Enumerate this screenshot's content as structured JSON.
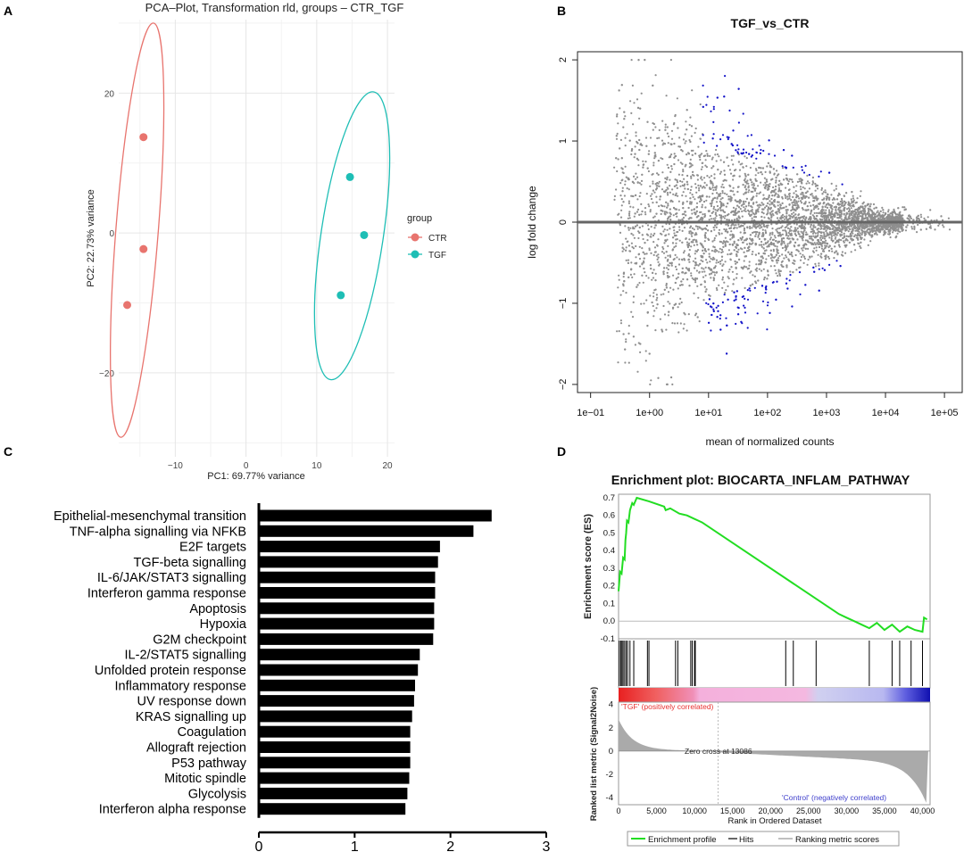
{
  "panels": {
    "a": {
      "label": "A"
    },
    "b": {
      "label": "B"
    },
    "c": {
      "label": "C"
    },
    "d": {
      "label": "D"
    }
  },
  "chart_data": [
    {
      "id": "A",
      "type": "scatter",
      "title": "PCA–Plot, Transformation rld, groups – CTR_TGF",
      "xlabel": "PC1: 69.77% variance",
      "ylabel": "PC2: 22.73% variance",
      "xlim": [
        -18,
        21
      ],
      "ylim": [
        -32,
        30.5
      ],
      "xticks": [
        -10,
        0,
        10,
        20
      ],
      "yticks": [
        -20,
        0,
        20
      ],
      "xtick_labels": [
        "−10",
        "0",
        "10",
        "20"
      ],
      "ytick_labels": [
        "−20",
        "0",
        "20"
      ],
      "grid": true,
      "legend": {
        "title": "group",
        "placement": "right"
      },
      "series": [
        {
          "name": "CTR",
          "color": "#e8746e",
          "points": [
            [
              -14.5,
              13.7
            ],
            [
              -14.5,
              -2.3
            ],
            [
              -16.8,
              -10.3
            ]
          ],
          "ellipse": {
            "cx": -15.4,
            "cy": 0.4,
            "rx": 3.0,
            "ry": 29.7,
            "angle_deg": 4.5
          }
        },
        {
          "name": "TGF",
          "color": "#1ebeb5",
          "points": [
            [
              14.7,
              8.0
            ],
            [
              16.7,
              -0.3
            ],
            [
              13.4,
              -8.9
            ]
          ],
          "ellipse": {
            "cx": 15.0,
            "cy": -0.4,
            "rx": 4.4,
            "ry": 20.8,
            "angle_deg": 8.5
          }
        }
      ]
    },
    {
      "id": "B",
      "type": "scatter",
      "title": "TGF_vs_CTR",
      "xlabel": "mean of normalized counts",
      "ylabel": "log fold change",
      "log_x": true,
      "xlim": [
        0.06,
        200000
      ],
      "ylim": [
        -2.1,
        2.1
      ],
      "xtick_labels": [
        "1e−01",
        "1e+00",
        "1e+01",
        "1e+02",
        "1e+03",
        "1e+04",
        "1e+05"
      ],
      "xtick_values": [
        0.1,
        1,
        10,
        100,
        1000,
        10000,
        100000
      ],
      "ytick_values": [
        -2,
        -1,
        0,
        1,
        2
      ],
      "ytick_labels": [
        "−2",
        "−1",
        "0",
        "1",
        "2"
      ],
      "grid": false,
      "hline": 0,
      "colors": {
        "nonsig": "#8f8f8f",
        "sig": "#1414c8",
        "zero_line": "#666666"
      }
    },
    {
      "id": "C",
      "type": "bar",
      "orientation": "horizontal",
      "categories": [
        "Epithelial-mesenchymal transition",
        "TNF-alpha signalling via NFKB",
        "E2F targets",
        "TGF-beta signalling",
        "IL-6/JAK/STAT3 signalling",
        "Interferon gamma response",
        "Apoptosis",
        "Hypoxia",
        "G2M checkpoint",
        "IL-2/STAT5 signalling",
        "Unfolded protein response",
        "Inflammatory response",
        "UV response down",
        "KRAS signalling up",
        "Coagulation",
        "Allograft rejection",
        "P53 pathway",
        "Mitotic spindle",
        "Glycolysis",
        "Interferon alpha response"
      ],
      "values": [
        2.43,
        2.24,
        1.89,
        1.87,
        1.84,
        1.84,
        1.83,
        1.83,
        1.82,
        1.68,
        1.66,
        1.63,
        1.62,
        1.6,
        1.58,
        1.58,
        1.58,
        1.57,
        1.55,
        1.53
      ],
      "xlim": [
        0,
        3
      ],
      "xticks": [
        0,
        1,
        2,
        3
      ],
      "color": "#000000"
    },
    {
      "id": "D",
      "type": "line",
      "title": "Enrichment plot: BIOCARTA_INFLAM_PATHWAY",
      "ylabel_top": "Enrichment score (ES)",
      "ylabel_bottom": "Ranked list metric (Signal2Noise)",
      "xlabel": "Rank in Ordered Dataset",
      "xlim": [
        0,
        41000
      ],
      "xticks": [
        0,
        5000,
        10000,
        15000,
        20000,
        25000,
        30000,
        35000,
        40000
      ],
      "xtick_labels": [
        "0",
        "5,000",
        "10,000",
        "15,000",
        "20,000",
        "25,000",
        "30,000",
        "35,000",
        "40,000"
      ],
      "es_ylim": [
        -0.1,
        0.72
      ],
      "es_yticks": [
        -0.1,
        0.0,
        0.1,
        0.2,
        0.3,
        0.4,
        0.5,
        0.6,
        0.7
      ],
      "es_ytick_labels": [
        "-0.1",
        "0.0",
        "0.1",
        "0.2",
        "0.3",
        "0.4",
        "0.5",
        "0.6",
        "0.7"
      ],
      "es_curve": [
        [
          0,
          0.17
        ],
        [
          200,
          0.28
        ],
        [
          400,
          0.27
        ],
        [
          600,
          0.36
        ],
        [
          800,
          0.35
        ],
        [
          900,
          0.46
        ],
        [
          1000,
          0.5
        ],
        [
          1100,
          0.57
        ],
        [
          1300,
          0.56
        ],
        [
          1500,
          0.63
        ],
        [
          1800,
          0.67
        ],
        [
          2000,
          0.66
        ],
        [
          2400,
          0.7
        ],
        [
          4000,
          0.68
        ],
        [
          6000,
          0.65
        ],
        [
          6200,
          0.63
        ],
        [
          6800,
          0.64
        ],
        [
          8000,
          0.61
        ],
        [
          9000,
          0.6
        ],
        [
          10000,
          0.58
        ],
        [
          10500,
          0.57
        ],
        [
          11000,
          0.56
        ],
        [
          29000,
          0.04
        ],
        [
          30000,
          0.02
        ],
        [
          31000,
          0.0
        ],
        [
          32000,
          -0.02
        ],
        [
          33000,
          -0.04
        ],
        [
          34000,
          -0.01
        ],
        [
          35000,
          -0.05
        ],
        [
          36000,
          -0.02
        ],
        [
          37000,
          -0.06
        ],
        [
          38000,
          -0.03
        ],
        [
          39000,
          -0.05
        ],
        [
          40000,
          -0.06
        ],
        [
          40200,
          0.02
        ],
        [
          40600,
          0.01
        ]
      ],
      "hits": [
        100,
        300,
        450,
        600,
        800,
        1000,
        1200,
        1500,
        2000,
        3800,
        4000,
        7500,
        7800,
        9500,
        9700,
        10000,
        10100,
        22000,
        23000,
        26000,
        33000,
        36000,
        37000,
        38500,
        40000
      ],
      "metric_ylim": [
        -4.6,
        4.2
      ],
      "metric_yticks": [
        -4,
        -2,
        0,
        2,
        4
      ],
      "metric_ytick_labels": [
        "-4",
        "-2",
        "0",
        "2",
        "4"
      ],
      "zero_cross_rank": 13086,
      "annotations": {
        "positive": "'TGF' (positively correlated)",
        "zero_cross": "Zero cross at 13086",
        "negative": "'Control' (negatively correlated)"
      },
      "legend_items": [
        "Enrichment profile",
        "Hits",
        "Ranking metric scores"
      ],
      "colors": {
        "es": "#22dd22",
        "hits": "#000000",
        "metric": "#aaaaaa",
        "positive_text": "#e83030",
        "negative_text": "#4040cc"
      }
    }
  ]
}
